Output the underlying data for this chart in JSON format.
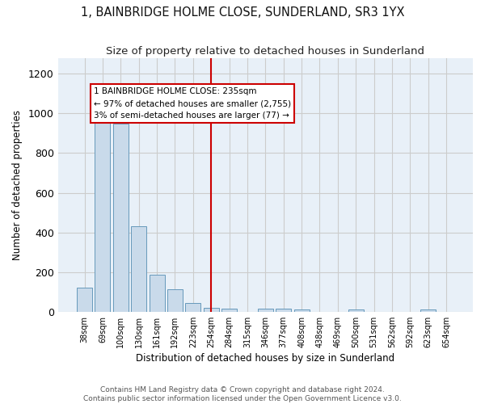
{
  "title1": "1, BAINBRIDGE HOLME CLOSE, SUNDERLAND, SR3 1YX",
  "title2": "Size of property relative to detached houses in Sunderland",
  "xlabel": "Distribution of detached houses by size in Sunderland",
  "ylabel": "Number of detached properties",
  "categories": [
    "38sqm",
    "69sqm",
    "100sqm",
    "130sqm",
    "161sqm",
    "192sqm",
    "223sqm",
    "254sqm",
    "284sqm",
    "315sqm",
    "346sqm",
    "377sqm",
    "408sqm",
    "438sqm",
    "469sqm",
    "500sqm",
    "531sqm",
    "562sqm",
    "592sqm",
    "623sqm",
    "654sqm"
  ],
  "values": [
    120,
    960,
    950,
    430,
    185,
    115,
    45,
    20,
    15,
    0,
    15,
    15,
    10,
    0,
    0,
    10,
    0,
    0,
    0,
    10,
    0
  ],
  "bar_color": "#c9daea",
  "bar_edge_color": "#6699bb",
  "redline_index": 7,
  "annotation_line1": "1 BAINBRIDGE HOLME CLOSE: 235sqm",
  "annotation_line2": "← 97% of detached houses are smaller (2,755)",
  "annotation_line3": "3% of semi-detached houses are larger (77) →",
  "annotation_box_color": "#ffffff",
  "annotation_box_edge": "#cc0000",
  "ylim": [
    0,
    1280
  ],
  "yticks": [
    0,
    200,
    400,
    600,
    800,
    1000,
    1200
  ],
  "grid_color": "#cccccc",
  "background_color": "#e8f0f8",
  "footer1": "Contains HM Land Registry data © Crown copyright and database right 2024.",
  "footer2": "Contains public sector information licensed under the Open Government Licence v3.0."
}
